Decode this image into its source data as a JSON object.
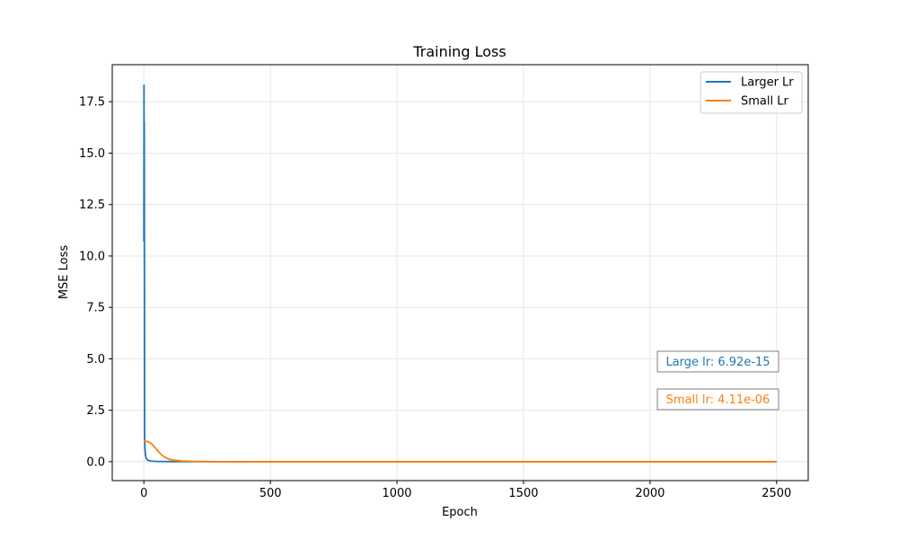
{
  "chart_data": {
    "type": "line",
    "title": "Training Loss",
    "xlabel": "Epoch",
    "ylabel": "MSE Loss",
    "xlim": [
      -125,
      2625
    ],
    "ylim": [
      -0.92,
      19.3
    ],
    "x_ticks": [
      0,
      500,
      1000,
      1500,
      2000,
      2500
    ],
    "y_ticks": [
      0.0,
      2.5,
      5.0,
      7.5,
      10.0,
      12.5,
      15.0,
      17.5
    ],
    "x_tick_labels": [
      "0",
      "500",
      "1000",
      "1500",
      "2000",
      "2500"
    ],
    "y_tick_labels": [
      "0.0",
      "2.5",
      "5.0",
      "7.5",
      "10.0",
      "12.5",
      "15.0",
      "17.5"
    ],
    "grid": true,
    "legend_position": "top-right",
    "series": [
      {
        "name": "Larger Lr",
        "color": "#1f77b4",
        "x": [
          0,
          0.5,
          1,
          1.5,
          2,
          3,
          4,
          5,
          6,
          8,
          10,
          15,
          20,
          30,
          50,
          100,
          200,
          500,
          1000,
          2500
        ],
        "y": [
          10.7,
          18.3,
          12.0,
          16.5,
          11.0,
          1.2,
          0.7,
          0.5,
          0.35,
          0.22,
          0.15,
          0.08,
          0.05,
          0.03,
          0.015,
          0.005,
          0.001,
          0.0,
          0.0,
          0.0
        ]
      },
      {
        "name": "Small Lr",
        "color": "#ff7f0e",
        "x": [
          0,
          10,
          20,
          30,
          40,
          50,
          60,
          70,
          80,
          90,
          100,
          120,
          150,
          200,
          250,
          300,
          500,
          1000,
          1500,
          2000,
          2500
        ],
        "y": [
          1.0,
          0.99,
          0.95,
          0.87,
          0.75,
          0.6,
          0.45,
          0.33,
          0.24,
          0.17,
          0.12,
          0.07,
          0.035,
          0.015,
          0.007,
          0.003,
          0.0005,
          0.0,
          0.0,
          0.0,
          0.0
        ]
      }
    ],
    "annotations": [
      {
        "text": "Large lr: 6.92e-15",
        "color": "#1f77b4"
      },
      {
        "text": "Small lr: 4.11e-06",
        "color": "#ff7f0e"
      }
    ]
  }
}
